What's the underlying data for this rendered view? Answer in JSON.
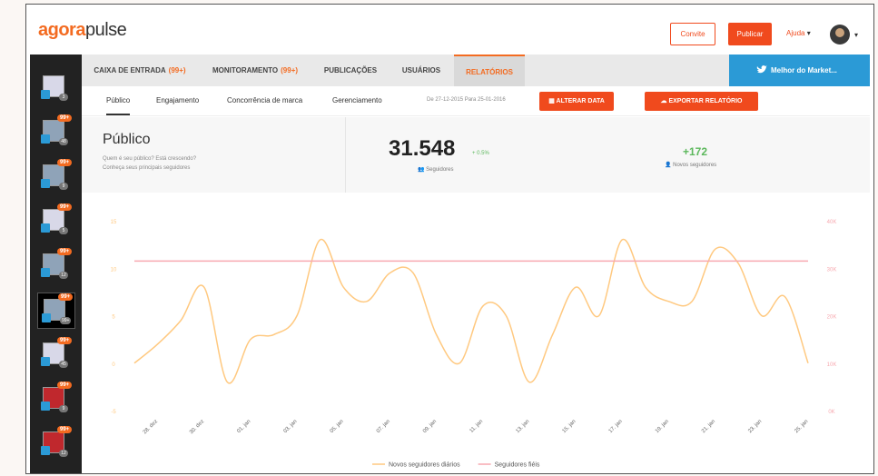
{
  "header": {
    "logo_a": "agora",
    "logo_b": "pulse",
    "invite": "Convite",
    "publish": "Publicar",
    "help": "Ajuda"
  },
  "tabs": [
    {
      "label": "CAIXA DE ENTRADA",
      "badge": "(99+)"
    },
    {
      "label": "MONITORAMENTO",
      "badge": "(99+)"
    },
    {
      "label": "PUBLICAÇÕES"
    },
    {
      "label": "USUÁRIOS"
    },
    {
      "label": "RELATÓRIOS"
    }
  ],
  "account_name": "Melhor do Market...",
  "subtabs": [
    "Público",
    "Engajamento",
    "Concorrência de marca",
    "Gerenciamento"
  ],
  "date_range": "De 27-12-2015 Para 25-01-2016",
  "change_date": "ALTERAR DATA",
  "export": "EXPORTAR RELATÓRIO",
  "summary": {
    "title": "Público",
    "question": "Quem é seu público? Está crescendo?",
    "hint": "Conheça seus principais seguidores",
    "followers": "31.548",
    "followers_change": "+ 0.5%",
    "followers_label": "Seguidores",
    "new_followers": "+172",
    "new_followers_label": "Novos seguidores"
  },
  "sidebar": [
    {
      "count": "3"
    },
    {
      "badge": "99+",
      "count": "48"
    },
    {
      "badge": "99+",
      "count": "9"
    },
    {
      "badge": "99+",
      "count": "5"
    },
    {
      "badge": "99+",
      "count": "12"
    },
    {
      "badge": "99+",
      "count": "99+"
    },
    {
      "badge": "99+",
      "count": "45"
    },
    {
      "badge": "99+",
      "count": "9"
    },
    {
      "badge": "99+",
      "count": "12"
    }
  ],
  "chart_data": {
    "type": "line",
    "categories": [
      null,
      "28. dez",
      null,
      "30. dez",
      null,
      "01. jan",
      null,
      "03. jan",
      null,
      "05. jan",
      null,
      "07. jan",
      null,
      "09. jan",
      null,
      "11. jan",
      null,
      "13. jan",
      null,
      "15. jan",
      null,
      "17. jan",
      null,
      "19. jan",
      null,
      "21. jan",
      null,
      "23. jan",
      null,
      "25. jan"
    ],
    "series": [
      {
        "name": "Novos seguidores diários",
        "color": "#ffc980",
        "values": [
          0,
          2,
          4.5,
          8,
          -2,
          2.5,
          3,
          5,
          13,
          8,
          6.5,
          9.5,
          9.5,
          3,
          0,
          6,
          5,
          -2,
          3,
          8,
          5,
          13,
          8,
          6.5,
          6.5,
          12,
          10.5,
          5,
          7,
          0
        ]
      },
      {
        "name": "Seguidores fiéis",
        "color": "#f7a9b0",
        "axis": "y2",
        "values": [
          31500,
          31500,
          31500,
          31500,
          31500,
          31500,
          31500,
          31500,
          31500,
          31500,
          31500,
          31500,
          31500,
          31500,
          31500,
          31500,
          31500,
          31500,
          31500,
          31500,
          31500,
          31500,
          31500,
          31500,
          31500,
          31500,
          31500,
          31500,
          31500,
          31500
        ]
      }
    ],
    "ylim": [
      -5,
      15
    ],
    "yticks": [
      -5,
      0,
      5,
      10,
      15
    ],
    "y2lim": [
      0,
      40000
    ],
    "y2ticks": [
      {
        "value": 0,
        "label": "0K"
      },
      {
        "value": 10000,
        "label": "10K"
      },
      {
        "value": 20000,
        "label": "20K"
      },
      {
        "value": 30000,
        "label": "30K"
      },
      {
        "value": 40000,
        "label": "40K"
      }
    ],
    "legend": "bottom"
  }
}
